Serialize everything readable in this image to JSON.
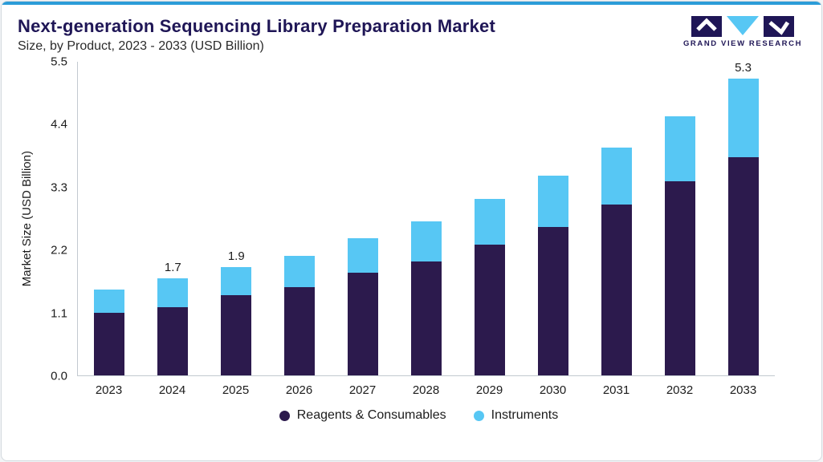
{
  "header": {
    "title": "Next-generation Sequencing Library Preparation Market",
    "subtitle": "Size, by Product, 2023 - 2033 (USD Billion)",
    "logo_text": "GRAND VIEW RESEARCH"
  },
  "colors": {
    "accent_line": "#2b9cd8",
    "title_navy": "#1f1656",
    "reagents": "#2c1a4d",
    "instruments": "#57c7f4",
    "axis": "#c2c9d0"
  },
  "chart_data": {
    "type": "bar",
    "stacked": true,
    "title": "Next-generation Sequencing Library Preparation Market",
    "subtitle": "Size, by Product, 2023 - 2033 (USD Billion)",
    "xlabel": "",
    "ylabel": "Market Size (USD Billion)",
    "categories": [
      "2023",
      "2024",
      "2025",
      "2026",
      "2027",
      "2028",
      "2029",
      "2030",
      "2031",
      "2032",
      "2033"
    ],
    "series": [
      {
        "name": "Reagents & Consumables",
        "color": "#2c1a4d",
        "values": [
          1.1,
          1.2,
          1.4,
          1.55,
          1.8,
          2.0,
          2.3,
          2.6,
          3.0,
          3.4,
          3.9
        ]
      },
      {
        "name": "Instruments",
        "color": "#57c7f4",
        "values": [
          0.4,
          0.5,
          0.5,
          0.55,
          0.6,
          0.7,
          0.8,
          0.9,
          1.0,
          1.15,
          1.4
        ]
      }
    ],
    "totals": [
      1.5,
      1.7,
      1.9,
      2.1,
      2.4,
      2.7,
      3.1,
      3.5,
      4.0,
      4.55,
      5.3
    ],
    "bar_value_labels": [
      "",
      "1.7",
      "1.9",
      "",
      "",
      "",
      "",
      "",
      "",
      "",
      "5.3"
    ],
    "ylim": [
      0,
      5.5
    ],
    "yticks": [
      "0.0",
      "1.1",
      "2.2",
      "3.3",
      "4.4",
      "5.5"
    ],
    "grid": false,
    "legend_position": "bottom"
  }
}
